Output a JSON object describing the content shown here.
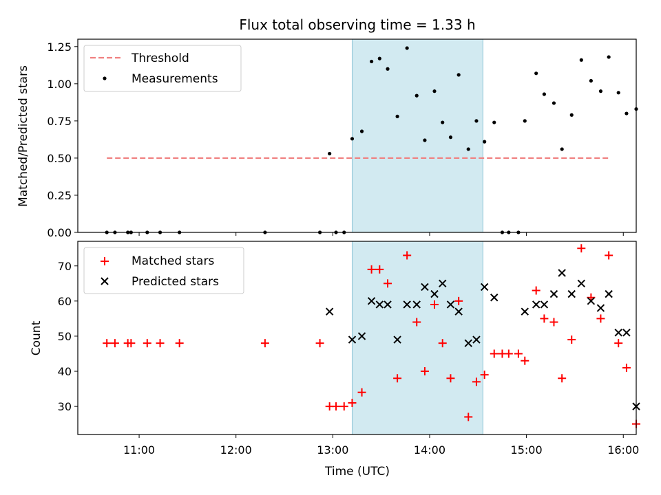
{
  "chart_data": [
    {
      "type": "scatter",
      "title": "Flux total observing time = 1.33 h",
      "xlabel": "",
      "ylabel": "Matched/Predicted stars",
      "ylim": [
        0,
        1.3
      ],
      "yticks": [
        "0.00",
        "0.25",
        "0.50",
        "0.75",
        "1.00",
        "1.25"
      ],
      "ytick_values": [
        0,
        0.25,
        0.5,
        0.75,
        1.0,
        1.25
      ],
      "legend_position": "top-left",
      "threshold": {
        "name": "Threshold",
        "value": 0.5,
        "x_start": "10:40",
        "x_end": "15:52",
        "color": "#f08080"
      },
      "series": [
        {
          "name": "Measurements",
          "marker": "dot",
          "color": "#000000",
          "points": [
            [
              "10:40",
              0
            ],
            [
              "10:45",
              0
            ],
            [
              "10:53",
              0
            ],
            [
              "10:55",
              0
            ],
            [
              "11:05",
              0
            ],
            [
              "11:13",
              0
            ],
            [
              "11:25",
              0
            ],
            [
              "12:18",
              0
            ],
            [
              "12:52",
              0
            ],
            [
              "12:58",
              0.53
            ],
            [
              "13:02",
              0
            ],
            [
              "13:07",
              0
            ],
            [
              "13:12",
              0.63
            ],
            [
              "13:18",
              0.68
            ],
            [
              "13:24",
              1.15
            ],
            [
              "13:29",
              1.17
            ],
            [
              "13:34",
              1.1
            ],
            [
              "13:40",
              0.78
            ],
            [
              "13:46",
              1.24
            ],
            [
              "13:52",
              0.92
            ],
            [
              "13:57",
              0.62
            ],
            [
              "14:03",
              0.95
            ],
            [
              "14:08",
              0.74
            ],
            [
              "14:13",
              0.64
            ],
            [
              "14:18",
              1.06
            ],
            [
              "14:24",
              0.56
            ],
            [
              "14:29",
              0.75
            ],
            [
              "14:34",
              0.61
            ],
            [
              "14:40",
              0.74
            ],
            [
              "14:45",
              0
            ],
            [
              "14:49",
              0
            ],
            [
              "14:55",
              0
            ],
            [
              "14:59",
              0.75
            ],
            [
              "15:06",
              1.07
            ],
            [
              "15:11",
              0.93
            ],
            [
              "15:17",
              0.87
            ],
            [
              "15:22",
              0.56
            ],
            [
              "15:28",
              0.79
            ],
            [
              "15:34",
              1.16
            ],
            [
              "15:40",
              1.02
            ],
            [
              "15:46",
              0.95
            ],
            [
              "15:51",
              1.18
            ],
            [
              "15:57",
              0.94
            ],
            [
              "16:02",
              0.8
            ],
            [
              "16:08",
              0.83
            ]
          ]
        }
      ],
      "highlight": {
        "x_start": "13:12",
        "x_end": "14:33",
        "color": "#add8e6"
      }
    },
    {
      "type": "scatter",
      "title": "",
      "xlabel": "Time (UTC)",
      "ylabel": "Count",
      "ylim": [
        22,
        77
      ],
      "yticks": [
        "30",
        "40",
        "50",
        "60",
        "70"
      ],
      "ytick_values": [
        30,
        40,
        50,
        60,
        70
      ],
      "xticks": [
        "11:00",
        "12:00",
        "13:00",
        "14:00",
        "15:00",
        "16:00"
      ],
      "x_range": [
        "10:22",
        "16:08"
      ],
      "legend_position": "top-left",
      "series": [
        {
          "name": "Matched stars",
          "marker": "plus",
          "color": "#ff0000",
          "points": [
            [
              "10:40",
              48
            ],
            [
              "10:45",
              48
            ],
            [
              "10:53",
              48
            ],
            [
              "10:55",
              48
            ],
            [
              "11:05",
              48
            ],
            [
              "11:13",
              48
            ],
            [
              "11:25",
              48
            ],
            [
              "12:18",
              48
            ],
            [
              "12:52",
              48
            ],
            [
              "12:58",
              30
            ],
            [
              "13:02",
              30
            ],
            [
              "13:07",
              30
            ],
            [
              "13:12",
              31
            ],
            [
              "13:18",
              34
            ],
            [
              "13:24",
              69
            ],
            [
              "13:29",
              69
            ],
            [
              "13:34",
              65
            ],
            [
              "13:40",
              38
            ],
            [
              "13:46",
              73
            ],
            [
              "13:52",
              54
            ],
            [
              "13:57",
              40
            ],
            [
              "14:03",
              59
            ],
            [
              "14:08",
              48
            ],
            [
              "14:13",
              38
            ],
            [
              "14:18",
              60
            ],
            [
              "14:24",
              27
            ],
            [
              "14:29",
              37
            ],
            [
              "14:34",
              39
            ],
            [
              "14:40",
              45
            ],
            [
              "14:45",
              45
            ],
            [
              "14:49",
              45
            ],
            [
              "14:55",
              45
            ],
            [
              "14:59",
              43
            ],
            [
              "15:06",
              63
            ],
            [
              "15:11",
              55
            ],
            [
              "15:17",
              54
            ],
            [
              "15:22",
              38
            ],
            [
              "15:28",
              49
            ],
            [
              "15:34",
              75
            ],
            [
              "15:40",
              61
            ],
            [
              "15:46",
              55
            ],
            [
              "15:51",
              73
            ],
            [
              "15:57",
              48
            ],
            [
              "16:02",
              41
            ],
            [
              "16:08",
              25
            ]
          ]
        },
        {
          "name": "Predicted stars",
          "marker": "x",
          "color": "#000000",
          "points": [
            [
              "12:58",
              57
            ],
            [
              "13:12",
              49
            ],
            [
              "13:18",
              50
            ],
            [
              "13:24",
              60
            ],
            [
              "13:29",
              59
            ],
            [
              "13:34",
              59
            ],
            [
              "13:40",
              49
            ],
            [
              "13:46",
              59
            ],
            [
              "13:52",
              59
            ],
            [
              "13:57",
              64
            ],
            [
              "14:03",
              62
            ],
            [
              "14:08",
              65
            ],
            [
              "14:13",
              59
            ],
            [
              "14:18",
              57
            ],
            [
              "14:24",
              48
            ],
            [
              "14:29",
              49
            ],
            [
              "14:34",
              64
            ],
            [
              "14:40",
              61
            ],
            [
              "14:59",
              57
            ],
            [
              "15:06",
              59
            ],
            [
              "15:11",
              59
            ],
            [
              "15:17",
              62
            ],
            [
              "15:22",
              68
            ],
            [
              "15:28",
              62
            ],
            [
              "15:34",
              65
            ],
            [
              "15:40",
              60
            ],
            [
              "15:46",
              58
            ],
            [
              "15:51",
              62
            ],
            [
              "15:57",
              51
            ],
            [
              "16:02",
              51
            ],
            [
              "16:08",
              30
            ]
          ]
        }
      ],
      "highlight": {
        "x_start": "13:12",
        "x_end": "14:33",
        "color": "#add8e6"
      }
    }
  ]
}
